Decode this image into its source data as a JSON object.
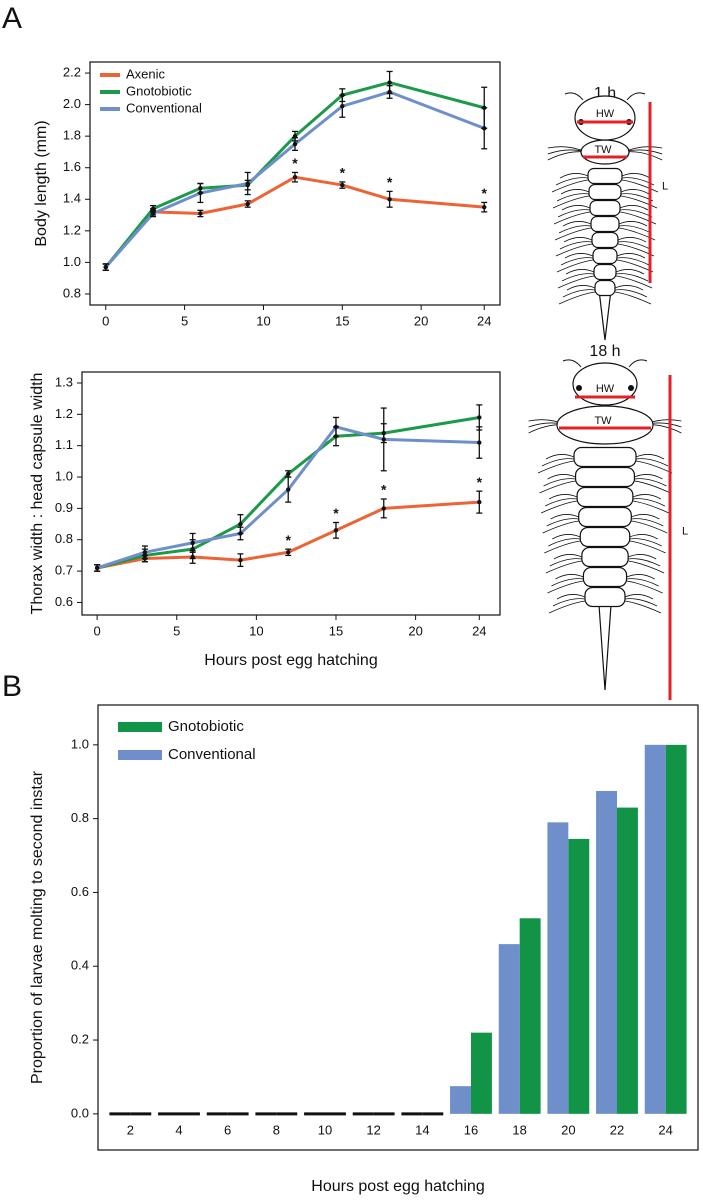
{
  "panels": [
    "A",
    "B"
  ],
  "larvae": [
    {
      "time": "1 h",
      "head": "HW",
      "thorax": "TW",
      "length": "L"
    },
    {
      "time": "18 h",
      "head": "HW",
      "thorax": "TW",
      "length": "L"
    }
  ],
  "chart_data": [
    {
      "type": "line",
      "y_label": "Body length (mm)",
      "legend": "upper left",
      "x": [
        0,
        3,
        6,
        9,
        12,
        15,
        18,
        24
      ],
      "xlim": [
        -1,
        25
      ],
      "xticks": [
        0,
        5,
        10,
        15,
        20,
        24
      ],
      "ylim": [
        0.73,
        2.27
      ],
      "yticks": [
        0.8,
        {
          "value": 1,
          "label": "1.0"
        },
        1.2,
        1.4,
        1.6,
        1.8,
        {
          "value": 2,
          "label": "2.0"
        },
        2.2
      ],
      "series": [
        {
          "name": "Axenic",
          "color": "#ec6335",
          "values": [
            0.97,
            1.32,
            1.31,
            1.37,
            1.54,
            1.49,
            1.4,
            1.35
          ],
          "errors": [
            0.02,
            0.02,
            0.02,
            0.02,
            0.03,
            0.02,
            0.05,
            0.03
          ],
          "annotation": {
            "text": "*",
            "x": [
              12,
              15,
              18,
              24
            ]
          }
        },
        {
          "name": "Gnotobiotic",
          "color": "#1c9a49",
          "values": [
            0.97,
            1.34,
            1.47,
            1.49,
            1.8,
            2.06,
            2.14,
            1.98
          ],
          "errors": [
            0.02,
            0.02,
            0.03,
            0.03,
            0.03,
            0.04,
            0.07,
            0.13
          ]
        },
        {
          "name": "Conventional",
          "color": "#6f8fcb",
          "values": [
            0.97,
            1.31,
            1.44,
            1.5,
            1.75,
            1.99,
            2.08,
            1.85
          ],
          "errors": [
            0.02,
            0.02,
            0.06,
            0.07,
            0.04,
            0.07,
            0.04,
            0.13
          ]
        }
      ]
    },
    {
      "type": "line",
      "y_label": "Thorax width : head capsule width",
      "x_label": "Hours post egg hatching",
      "x": [
        0,
        3,
        6,
        9,
        12,
        15,
        18,
        24
      ],
      "xlim": [
        -0.95,
        25.3
      ],
      "xticks": [
        0,
        5,
        10,
        15,
        20,
        24
      ],
      "ylim": [
        0.56,
        1.335
      ],
      "yticks": [
        0.6,
        0.7,
        0.8,
        0.9,
        {
          "value": 1,
          "label": "1.0"
        },
        1.1,
        1.2,
        1.3
      ],
      "series": [
        {
          "color": "#ec6335",
          "values": [
            0.71,
            0.74,
            0.745,
            0.735,
            0.76,
            0.83,
            0.9,
            0.92
          ],
          "errors": [
            0.01,
            0.01,
            0.02,
            0.02,
            0.01,
            0.025,
            0.03,
            0.035
          ],
          "annotation": {
            "text": "*",
            "x": [
              12,
              15,
              18,
              24
            ]
          }
        },
        {
          "color": "#1c9a49",
          "values": [
            0.71,
            0.75,
            0.77,
            0.85,
            1.01,
            1.13,
            1.14,
            1.19
          ],
          "errors": [
            0.01,
            0.02,
            0.03,
            0.03,
            0.01,
            0.03,
            0.03,
            0.04
          ]
        },
        {
          "color": "#6f8fcb",
          "values": [
            0.71,
            0.76,
            0.79,
            0.82,
            0.96,
            1.16,
            1.12,
            1.11
          ],
          "errors": [
            0.01,
            0.02,
            0.03,
            0.02,
            0.04,
            0.03,
            0.1,
            0.05
          ]
        }
      ]
    },
    {
      "type": "bar",
      "y_label": "Proportion of larvae molting to second instar",
      "x_label": "Hours post egg hatching",
      "legend": "upper left",
      "categories": [
        "2",
        "4",
        "6",
        "8",
        "10",
        "12",
        "14",
        "16",
        "18",
        "20",
        "22",
        "24"
      ],
      "ylim": [
        -0.098,
        1.108
      ],
      "yticks": [
        {
          "value": 0,
          "label": "0.0"
        },
        0.2,
        0.4,
        0.6,
        0.8,
        {
          "value": 1,
          "label": "1.0"
        }
      ],
      "series": [
        {
          "name": "Gnotobiotic",
          "color": "#129447",
          "values": [
            0,
            0,
            0,
            0,
            0,
            0,
            0,
            0.22,
            0.53,
            0.745,
            0.83,
            1.0
          ]
        },
        {
          "name": "Conventional",
          "color": "#6f8fcb",
          "values": [
            0,
            0,
            0,
            0,
            0,
            0,
            0,
            0.075,
            0.46,
            0.79,
            0.875,
            1.0
          ]
        }
      ]
    }
  ]
}
